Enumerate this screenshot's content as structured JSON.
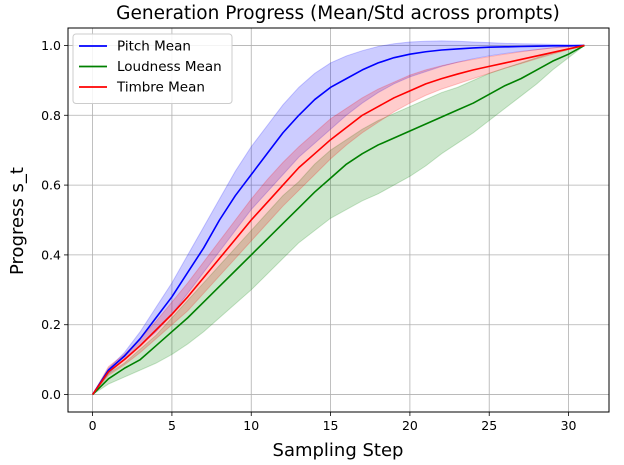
{
  "chart_data": {
    "type": "line",
    "title": "Generation Progress (Mean/Std across prompts)",
    "xlabel": "Sampling Step",
    "ylabel": "Progress s_t",
    "xlim": [
      -1.55,
      32.55
    ],
    "ylim": [
      -0.05,
      1.05
    ],
    "xticks": [
      0,
      5,
      10,
      15,
      20,
      25,
      30
    ],
    "yticks": [
      0.0,
      0.2,
      0.4,
      0.6,
      0.8,
      1.0
    ],
    "xtick_labels": [
      "0",
      "5",
      "10",
      "15",
      "20",
      "25",
      "30"
    ],
    "ytick_labels": [
      "0.0",
      "0.2",
      "0.4",
      "0.6",
      "0.8",
      "1.0"
    ],
    "grid": true,
    "legend_position": "upper-left",
    "x": [
      0,
      1,
      2,
      3,
      4,
      5,
      6,
      7,
      8,
      9,
      10,
      11,
      12,
      13,
      14,
      15,
      16,
      17,
      18,
      19,
      20,
      21,
      22,
      23,
      24,
      25,
      26,
      27,
      28,
      29,
      30,
      31
    ],
    "series": [
      {
        "name": "Pitch Mean",
        "color": "#0000ff",
        "band_alpha": 0.2,
        "mean": [
          0.0,
          0.07,
          0.11,
          0.16,
          0.22,
          0.28,
          0.35,
          0.42,
          0.5,
          0.57,
          0.63,
          0.69,
          0.75,
          0.8,
          0.845,
          0.88,
          0.905,
          0.93,
          0.95,
          0.965,
          0.975,
          0.982,
          0.987,
          0.99,
          0.993,
          0.995,
          0.996,
          0.997,
          0.998,
          0.999,
          0.999,
          1.0
        ],
        "upper": [
          0.0,
          0.075,
          0.12,
          0.18,
          0.25,
          0.32,
          0.4,
          0.48,
          0.56,
          0.64,
          0.71,
          0.77,
          0.83,
          0.88,
          0.92,
          0.95,
          0.97,
          0.985,
          0.997,
          1.005,
          1.01,
          1.012,
          1.013,
          1.012,
          1.01,
          1.008,
          1.006,
          1.005,
          1.004,
          1.003,
          1.002,
          1.0
        ],
        "lower": [
          0.0,
          0.06,
          0.1,
          0.14,
          0.18,
          0.23,
          0.29,
          0.35,
          0.41,
          0.47,
          0.53,
          0.58,
          0.63,
          0.68,
          0.72,
          0.76,
          0.8,
          0.835,
          0.865,
          0.89,
          0.91,
          0.925,
          0.94,
          0.952,
          0.962,
          0.97,
          0.977,
          0.983,
          0.988,
          0.993,
          0.997,
          1.0
        ]
      },
      {
        "name": "Loudness Mean",
        "color": "#008000",
        "band_alpha": 0.2,
        "mean": [
          0.0,
          0.045,
          0.075,
          0.1,
          0.14,
          0.18,
          0.22,
          0.265,
          0.31,
          0.355,
          0.4,
          0.445,
          0.49,
          0.535,
          0.58,
          0.62,
          0.66,
          0.69,
          0.715,
          0.735,
          0.755,
          0.775,
          0.795,
          0.815,
          0.835,
          0.86,
          0.885,
          0.905,
          0.93,
          0.955,
          0.975,
          1.0
        ],
        "upper": [
          0.0,
          0.06,
          0.09,
          0.13,
          0.17,
          0.22,
          0.27,
          0.32,
          0.37,
          0.42,
          0.47,
          0.52,
          0.57,
          0.61,
          0.66,
          0.7,
          0.73,
          0.76,
          0.785,
          0.805,
          0.825,
          0.845,
          0.865,
          0.88,
          0.9,
          0.92,
          0.935,
          0.95,
          0.965,
          0.98,
          0.99,
          1.0
        ],
        "lower": [
          0.0,
          0.03,
          0.05,
          0.07,
          0.09,
          0.115,
          0.145,
          0.18,
          0.22,
          0.26,
          0.3,
          0.345,
          0.39,
          0.435,
          0.47,
          0.505,
          0.53,
          0.555,
          0.575,
          0.6,
          0.625,
          0.655,
          0.69,
          0.72,
          0.75,
          0.785,
          0.82,
          0.855,
          0.89,
          0.93,
          0.965,
          1.0
        ]
      },
      {
        "name": "Timbre Mean",
        "color": "#ff0000",
        "band_alpha": 0.2,
        "mean": [
          0.0,
          0.065,
          0.1,
          0.14,
          0.185,
          0.23,
          0.28,
          0.335,
          0.39,
          0.445,
          0.5,
          0.55,
          0.6,
          0.65,
          0.69,
          0.73,
          0.765,
          0.8,
          0.825,
          0.85,
          0.87,
          0.89,
          0.905,
          0.918,
          0.93,
          0.94,
          0.95,
          0.96,
          0.97,
          0.98,
          0.99,
          1.0
        ],
        "upper": [
          0.0,
          0.08,
          0.115,
          0.16,
          0.21,
          0.265,
          0.32,
          0.38,
          0.44,
          0.5,
          0.56,
          0.615,
          0.665,
          0.71,
          0.75,
          0.79,
          0.82,
          0.85,
          0.875,
          0.895,
          0.915,
          0.93,
          0.942,
          0.952,
          0.96,
          0.968,
          0.975,
          0.982,
          0.988,
          0.993,
          0.997,
          1.0
        ],
        "lower": [
          0.0,
          0.055,
          0.085,
          0.12,
          0.16,
          0.2,
          0.24,
          0.29,
          0.34,
          0.39,
          0.44,
          0.49,
          0.54,
          0.585,
          0.63,
          0.675,
          0.715,
          0.75,
          0.78,
          0.81,
          0.835,
          0.857,
          0.875,
          0.89,
          0.905,
          0.92,
          0.935,
          0.948,
          0.962,
          0.975,
          0.988,
          1.0
        ]
      }
    ]
  }
}
